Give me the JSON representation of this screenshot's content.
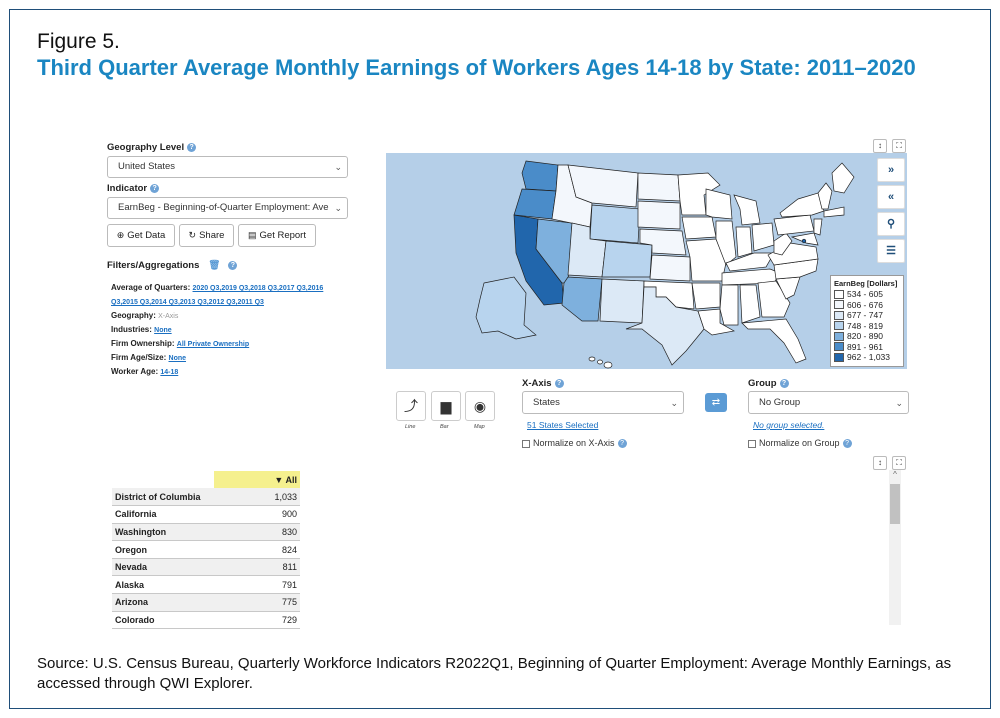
{
  "figure": {
    "label": "Figure 5.",
    "title": "Third Quarter Average Monthly Earnings of Workers Ages 14-18 by State: 2011–2020",
    "source": "Source: U.S. Census Bureau, Quarterly Workforce Indicators R2022Q1, Beginning of Quarter Employment: Average Monthly Earnings, as accessed through QWI Explorer."
  },
  "controls": {
    "geography_level_label": "Geography Level",
    "geography_level_value": "United States",
    "indicator_label": "Indicator",
    "indicator_value": "EarnBeg - Beginning-of-Quarter Employment: Ave",
    "get_data": "Get Data",
    "share": "Share",
    "get_report": "Get Report",
    "filters_label": "Filters/Aggregations"
  },
  "filters": {
    "avg_quarters_label": "Average of Quarters:",
    "avg_quarters_line1": "2020 Q3,2019 Q3,2018 Q3,2017 Q3,2016",
    "avg_quarters_line2": "Q3,2015 Q3,2014 Q3,2013 Q3,2012 Q3,2011 Q3",
    "geography_label": "Geography:",
    "geography_value": "X-Axis",
    "industries_label": "Industries:",
    "industries_value": "None",
    "ownership_label": "Firm Ownership:",
    "ownership_value": "All Private Ownership",
    "firm_age_label": "Firm Age/Size:",
    "firm_age_value": "None",
    "worker_age_label": "Worker Age:",
    "worker_age_value": "14-18"
  },
  "legend": {
    "title": "EarnBeg [Dollars]",
    "items": [
      {
        "label": "534 - 605",
        "color": "#ffffff"
      },
      {
        "label": "606 - 676",
        "color": "#f3f7fc"
      },
      {
        "label": "677 - 747",
        "color": "#dce9f6"
      },
      {
        "label": "748 - 819",
        "color": "#b8d4ee"
      },
      {
        "label": "820 - 890",
        "color": "#7eb0dd"
      },
      {
        "label": "891 - 961",
        "color": "#4a8cc9"
      },
      {
        "label": "962 - 1,033",
        "color": "#2166ac"
      }
    ]
  },
  "chart_panel": {
    "line": "Line",
    "bar": "Bar",
    "map": "Map",
    "xaxis_label": "X-Axis",
    "xaxis_value": "States",
    "states_selected": "51 States Selected",
    "normalize_x": "Normalize on X-Axis",
    "group_label": "Group",
    "group_value": "No Group",
    "no_group_selected": "No group selected.",
    "normalize_group": "Normalize on Group"
  },
  "table": {
    "header_all": "▼ All",
    "rows": [
      {
        "state": "District of Columbia",
        "value": "1,033"
      },
      {
        "state": "California",
        "value": "900"
      },
      {
        "state": "Washington",
        "value": "830"
      },
      {
        "state": "Oregon",
        "value": "824"
      },
      {
        "state": "Nevada",
        "value": "811"
      },
      {
        "state": "Alaska",
        "value": "791"
      },
      {
        "state": "Arizona",
        "value": "775"
      },
      {
        "state": "Colorado",
        "value": "729"
      }
    ]
  }
}
